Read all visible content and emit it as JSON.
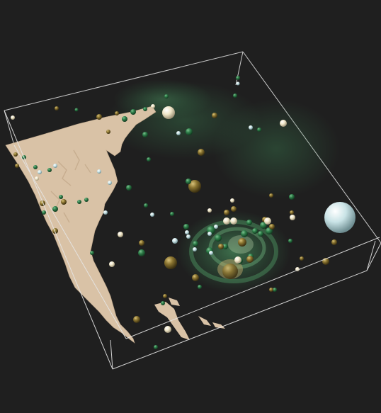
{
  "scene": {
    "kind": "3d-volume-rendering",
    "background_color": "#1f1f1f",
    "box_edge_color": "#e6e6e6",
    "land_color": "#d9c2a6",
    "volume_glow_color": "#3f8a57",
    "sphere_colors": {
      "green": "#2f7f4a",
      "olive": "#8a7430",
      "cream": "#efe6c8",
      "pale_blue": "#c9e3e6"
    }
  }
}
